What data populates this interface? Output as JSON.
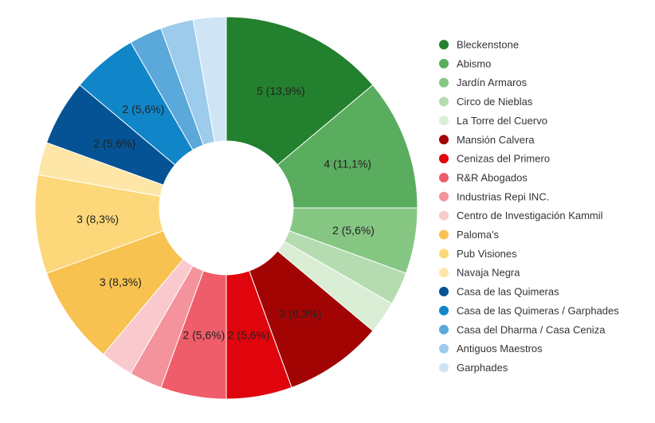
{
  "chart_data": {
    "type": "pie",
    "donut": true,
    "legend_position": "right",
    "total": 36,
    "slices": [
      {
        "name": "Bleckenstone",
        "value": 5,
        "label": "5 (13,9%)",
        "color": "#23802e"
      },
      {
        "name": "Abismo",
        "value": 4,
        "label": "4 (11,1%)",
        "color": "#5aac5e"
      },
      {
        "name": "Jardín Armaros",
        "value": 2,
        "label": "2 (5,6%)",
        "color": "#86c683"
      },
      {
        "name": "Circo de Nieblas",
        "value": 1,
        "label": "",
        "color": "#b5dcb0"
      },
      {
        "name": "La Torre del Cuervo",
        "value": 1,
        "label": "",
        "color": "#d9eed5"
      },
      {
        "name": "Mansión Calvera",
        "value": 3,
        "label": "3 (8,3%)",
        "color": "#a20404"
      },
      {
        "name": "Cenizas del Primero",
        "value": 2,
        "label": "2 (5,6%)",
        "color": "#e0040d"
      },
      {
        "name": "R&R Abogados",
        "value": 2,
        "label": "2 (5,6%)",
        "color": "#ee5d69"
      },
      {
        "name": "Industrias Repi INC.",
        "value": 1,
        "label": "",
        "color": "#f4939b"
      },
      {
        "name": "Centro de Investigación Kammil",
        "value": 1,
        "label": "",
        "color": "#f9c9cd"
      },
      {
        "name": "Paloma's",
        "value": 3,
        "label": "3 (8,3%)",
        "color": "#f8c250"
      },
      {
        "name": "Pub Visiones",
        "value": 3,
        "label": "3 (8,3%)",
        "color": "#fcd87a"
      },
      {
        "name": "Navaja Negra",
        "value": 1,
        "label": "",
        "color": "#fde6a8"
      },
      {
        "name": "Casa de las Quimeras",
        "value": 2,
        "label": "2 (5,6%)",
        "color": "#055394"
      },
      {
        "name": "Casa de las Quimeras / Garphades",
        "value": 2,
        "label": "2 (5,6%)",
        "color": "#1086c8"
      },
      {
        "name": "Casa del Dharma / Casa Ceniza",
        "value": 1,
        "label": "",
        "color": "#5ba8da"
      },
      {
        "name": "Antiguos Maestros",
        "value": 1,
        "label": "",
        "color": "#9ccbeb"
      },
      {
        "name": "Garphades",
        "value": 1,
        "label": "",
        "color": "#cfe4f5"
      }
    ]
  }
}
